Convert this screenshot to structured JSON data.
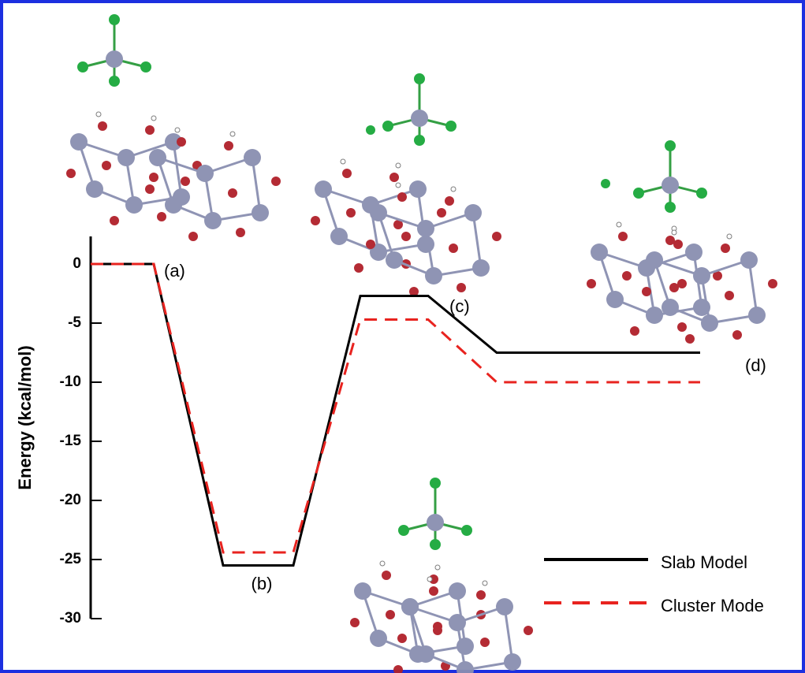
{
  "chart_data": {
    "type": "line",
    "y_label": "Energy (kcal/mol)",
    "categories": [
      "(a)",
      "(b)",
      "(c)",
      "(d)"
    ],
    "series": [
      {
        "name": "Slab Model",
        "color": "#000000",
        "dash": false,
        "values": [
          0,
          -25.5,
          -2.7,
          -7.5
        ]
      },
      {
        "name": "Cluster Mode",
        "color": "#e8231f",
        "dash": true,
        "values": [
          0,
          -24.4,
          -4.7,
          -10
        ]
      }
    ],
    "ylim": [
      -30,
      2
    ],
    "yticks": [
      0,
      -5,
      -10,
      -15,
      -20,
      -25,
      -30
    ]
  }
}
